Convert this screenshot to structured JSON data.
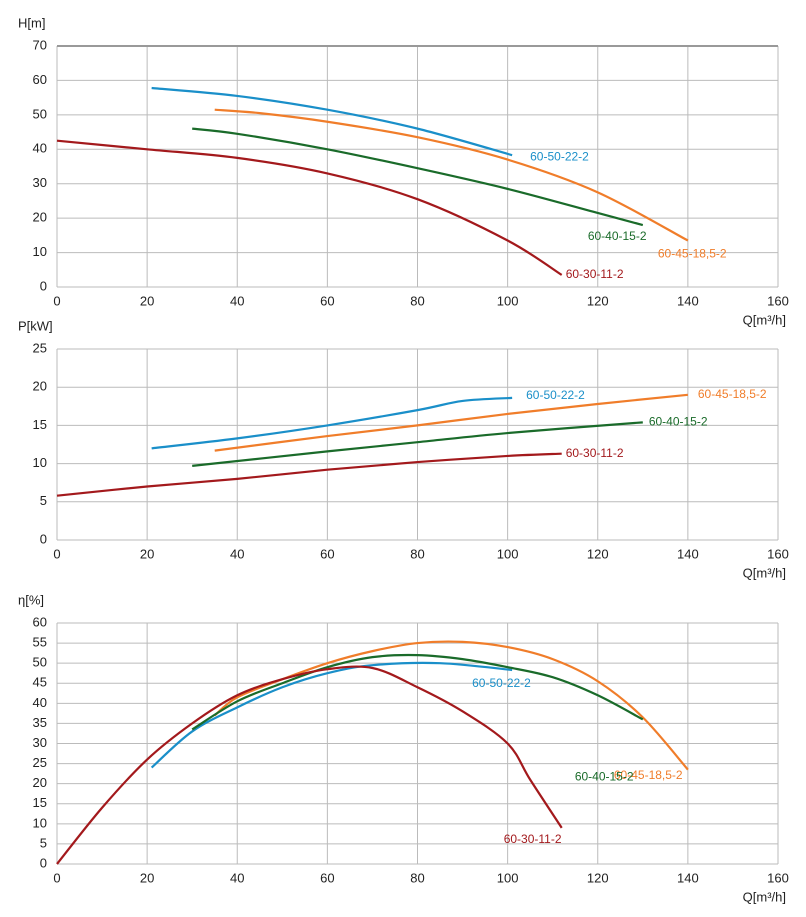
{
  "chart_data": [
    {
      "type": "line",
      "ylabel": "H[m]",
      "xlabel": "Q[m³/h]",
      "xlim": [
        0,
        160
      ],
      "xticks": [
        0,
        20,
        40,
        60,
        80,
        100,
        120,
        140,
        160
      ],
      "ylim": [
        0,
        70
      ],
      "yticks": [
        0,
        10,
        20,
        30,
        40,
        50,
        60,
        70
      ],
      "grid": true,
      "series": [
        {
          "name": "60-50-22-2",
          "color": "#1a8fc9",
          "x": [
            21,
            40,
            60,
            80,
            101
          ],
          "values": [
            57.8,
            55.5,
            51.5,
            46,
            38.3
          ]
        },
        {
          "name": "60-45-18,5-2",
          "color": "#f07d2a",
          "x": [
            35,
            45,
            60,
            80,
            100,
            120,
            140
          ],
          "values": [
            51.5,
            50.5,
            48,
            43.5,
            37,
            27.5,
            13.5
          ]
        },
        {
          "name": "60-40-15-2",
          "color": "#1a6b2a",
          "x": [
            30,
            40,
            60,
            80,
            100,
            120,
            130
          ],
          "values": [
            46,
            44.5,
            40,
            34.5,
            28.5,
            21.5,
            18
          ]
        },
        {
          "name": "60-30-11-2",
          "color": "#a3191c",
          "x": [
            0,
            20,
            40,
            60,
            80,
            100,
            112
          ],
          "values": [
            42.5,
            40,
            37.5,
            33,
            25.5,
            13.5,
            3.5
          ]
        }
      ]
    },
    {
      "type": "line",
      "ylabel": "P[kW]",
      "xlabel": "Q[m³/h]",
      "xlim": [
        0,
        160
      ],
      "xticks": [
        0,
        20,
        40,
        60,
        80,
        100,
        120,
        140,
        160
      ],
      "ylim": [
        0,
        25
      ],
      "yticks": [
        0,
        5,
        10,
        15,
        20,
        25
      ],
      "grid": true,
      "series": [
        {
          "name": "60-50-22-2",
          "color": "#1a8fc9",
          "x": [
            21,
            40,
            60,
            80,
            90,
            101
          ],
          "values": [
            12,
            13.3,
            15,
            17,
            18.2,
            18.6
          ]
        },
        {
          "name": "60-45-18,5-2",
          "color": "#f07d2a",
          "x": [
            35,
            60,
            80,
            100,
            120,
            140
          ],
          "values": [
            11.7,
            13.6,
            15,
            16.5,
            17.8,
            19
          ]
        },
        {
          "name": "60-40-15-2",
          "color": "#1a6b2a",
          "x": [
            30,
            60,
            80,
            100,
            130
          ],
          "values": [
            9.7,
            11.6,
            12.8,
            14,
            15.4
          ]
        },
        {
          "name": "60-30-11-2",
          "color": "#a3191c",
          "x": [
            0,
            20,
            40,
            60,
            80,
            100,
            112
          ],
          "values": [
            5.8,
            7,
            8,
            9.2,
            10.2,
            11,
            11.3
          ]
        }
      ]
    },
    {
      "type": "line",
      "ylabel": "η[%]",
      "xlabel": "Q[m³/h]",
      "xlim": [
        0,
        160
      ],
      "xticks": [
        0,
        20,
        40,
        60,
        80,
        100,
        120,
        140,
        160
      ],
      "ylim": [
        0,
        60
      ],
      "yticks": [
        0,
        5,
        10,
        15,
        20,
        25,
        30,
        35,
        40,
        45,
        50,
        55,
        60
      ],
      "grid": true,
      "series": [
        {
          "name": "60-50-22-2",
          "color": "#1a8fc9",
          "x": [
            21,
            30,
            40,
            50,
            60,
            70,
            85,
            101
          ],
          "values": [
            24,
            33,
            39,
            44,
            47.5,
            49.5,
            50,
            48.3
          ]
        },
        {
          "name": "60-45-18,5-2",
          "color": "#f07d2a",
          "x": [
            35,
            40,
            50,
            60,
            70,
            80,
            90,
            100,
            110,
            120,
            130,
            140
          ],
          "values": [
            37,
            41.5,
            46,
            50,
            53,
            55,
            55.3,
            54,
            51,
            45.5,
            36.5,
            23.5
          ]
        },
        {
          "name": "60-40-15-2",
          "color": "#1a6b2a",
          "x": [
            30,
            40,
            50,
            60,
            70,
            80,
            90,
            100,
            110,
            120,
            130
          ],
          "values": [
            33.5,
            40.5,
            45,
            49,
            51.5,
            52,
            51,
            49,
            46.5,
            42,
            36
          ]
        },
        {
          "name": "60-30-11-2",
          "color": "#a3191c",
          "x": [
            0,
            10,
            20,
            30,
            40,
            50,
            60,
            70,
            80,
            90,
            100,
            105,
            112
          ],
          "values": [
            0,
            14,
            26,
            35,
            42,
            46,
            48.5,
            48.8,
            44,
            38,
            30,
            21,
            9
          ]
        }
      ]
    }
  ]
}
